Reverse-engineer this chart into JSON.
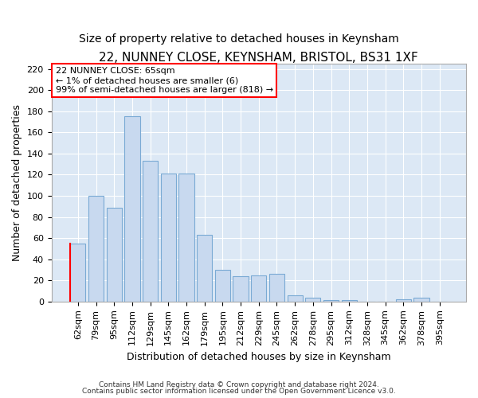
{
  "title": "22, NUNNEY CLOSE, KEYNSHAM, BRISTOL, BS31 1XF",
  "subtitle": "Size of property relative to detached houses in Keynsham",
  "xlabel": "Distribution of detached houses by size in Keynsham",
  "ylabel": "Number of detached properties",
  "categories": [
    "62sqm",
    "79sqm",
    "95sqm",
    "112sqm",
    "129sqm",
    "145sqm",
    "162sqm",
    "179sqm",
    "195sqm",
    "212sqm",
    "229sqm",
    "245sqm",
    "262sqm",
    "278sqm",
    "295sqm",
    "312sqm",
    "328sqm",
    "345sqm",
    "362sqm",
    "378sqm",
    "395sqm"
  ],
  "values": [
    55,
    100,
    89,
    175,
    133,
    121,
    121,
    63,
    30,
    24,
    25,
    26,
    6,
    4,
    1,
    1,
    0,
    0,
    2,
    4,
    0
  ],
  "bar_color": "#c8d9ef",
  "bar_edge_color": "#7aaad4",
  "ylim": [
    0,
    225
  ],
  "yticks": [
    0,
    20,
    40,
    60,
    80,
    100,
    120,
    140,
    160,
    180,
    200,
    220
  ],
  "annotation_title": "22 NUNNEY CLOSE: 65sqm",
  "annotation_line1": "← 1% of detached houses are smaller (6)",
  "annotation_line2": "99% of semi-detached houses are larger (818) →",
  "footer1": "Contains HM Land Registry data © Crown copyright and database right 2024.",
  "footer2": "Contains public sector information licensed under the Open Government Licence v3.0.",
  "bg_color": "#ffffff",
  "chart_bg_color": "#dce8f5",
  "grid_color": "#ffffff",
  "title_fontsize": 11,
  "subtitle_fontsize": 10,
  "axis_label_fontsize": 9,
  "tick_fontsize": 8,
  "footer_fontsize": 6.5
}
